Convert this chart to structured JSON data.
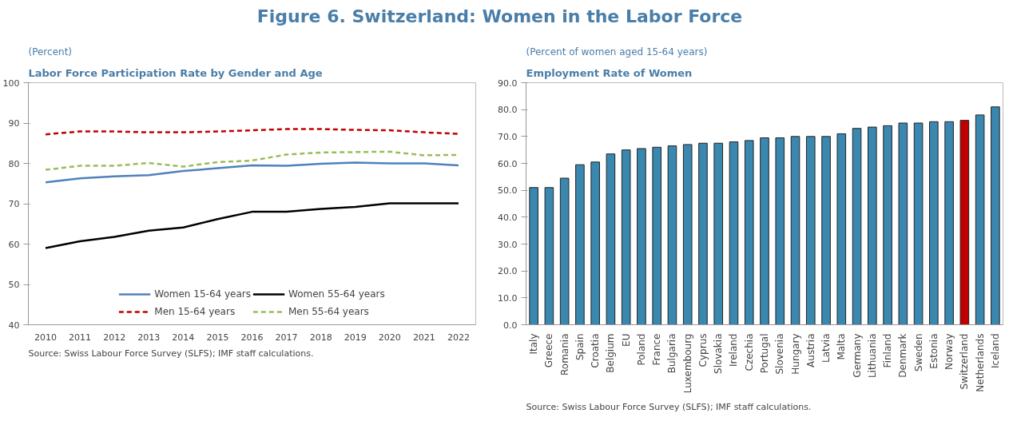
{
  "chart_data": [
    {
      "type": "other",
      "title": "Figure 6. Switzerland: Women in the Labor Force"
    },
    {
      "type": "line",
      "title": "Labor Force Participation Rate by Gender and Age",
      "subtitle": "(Percent)",
      "categories": [
        "2010",
        "2011",
        "2012",
        "2013",
        "2014",
        "2015",
        "2016",
        "2017",
        "2018",
        "2019",
        "2020",
        "2021",
        "2022"
      ],
      "series": [
        {
          "name": "Women 15-64 years",
          "color": "#4f81bd",
          "line_style": "solid",
          "values": [
            75.3,
            76.3,
            76.8,
            77.1,
            78.1,
            78.8,
            79.5,
            79.4,
            79.9,
            80.2,
            80.0,
            80.0,
            79.5
          ]
        },
        {
          "name": "Men 15-64 years",
          "color": "#c00000",
          "line_style": "dashed",
          "values": [
            87.2,
            87.9,
            87.9,
            87.7,
            87.7,
            87.9,
            88.2,
            88.5,
            88.5,
            88.3,
            88.2,
            87.7,
            87.3
          ]
        },
        {
          "name": "Women 55-64 years",
          "color": "#000000",
          "line_style": "solid",
          "values": [
            59.0,
            60.7,
            61.8,
            63.3,
            64.1,
            66.2,
            68.0,
            68.0,
            68.7,
            69.2,
            70.1,
            70.1,
            70.1
          ]
        },
        {
          "name": "Men 55-64 years",
          "color": "#9bbb59",
          "line_style": "dashed",
          "values": [
            78.4,
            79.4,
            79.4,
            80.1,
            79.2,
            80.3,
            80.7,
            82.2,
            82.7,
            82.8,
            82.9,
            82.0,
            82.1
          ]
        }
      ],
      "ylim": [
        40,
        100
      ],
      "yticks": [
        40,
        50,
        60,
        70,
        80,
        90,
        100
      ],
      "grid": false,
      "legend": "bottom",
      "marker": "none",
      "annotations": [
        "Source: Swiss Labour Force Survey (SLFS); IMF staff calculations."
      ]
    },
    {
      "type": "bar",
      "title": "Employment Rate of Women",
      "subtitle": "(Percent of women aged 15-64 years)",
      "categories": [
        "Italy",
        "Greece",
        "Romania",
        "Spain",
        "Croatia",
        "Belgium",
        "EU",
        "Poland",
        "France",
        "Bulgaria",
        "Luxembourg",
        "Cyprus",
        "Slovakia",
        "Ireland",
        "Czechia",
        "Portugal",
        "Slovenia",
        "Hungary",
        "Austria",
        "Latvia",
        "Malta",
        "Germany",
        "Lithuania",
        "Finland",
        "Denmark",
        "Sweden",
        "Estonia",
        "Norway",
        "Switzerland",
        "Netherlands",
        "Iceland"
      ],
      "values": [
        51,
        51,
        54.5,
        59.5,
        60.5,
        63.5,
        65,
        65.5,
        66,
        66.5,
        67,
        67.5,
        67.5,
        68,
        68.5,
        69.5,
        69.5,
        70,
        70,
        70,
        71,
        73,
        73.5,
        74,
        75,
        75,
        75.5,
        75.5,
        76,
        78,
        81
      ],
      "colors": [
        "#3a87b0",
        "#3a87b0",
        "#3a87b0",
        "#3a87b0",
        "#3a87b0",
        "#3a87b0",
        "#3a87b0",
        "#3a87b0",
        "#3a87b0",
        "#3a87b0",
        "#3a87b0",
        "#3a87b0",
        "#3a87b0",
        "#3a87b0",
        "#3a87b0",
        "#3a87b0",
        "#3a87b0",
        "#3a87b0",
        "#3a87b0",
        "#3a87b0",
        "#3a87b0",
        "#3a87b0",
        "#3a87b0",
        "#3a87b0",
        "#3a87b0",
        "#3a87b0",
        "#3a87b0",
        "#3a87b0",
        "#c00000",
        "#3a87b0",
        "#3a87b0"
      ],
      "ylim": [
        0,
        90
      ],
      "yticks": [
        {
          "value": 0,
          "label": "0.0"
        },
        {
          "value": 10,
          "label": "10.0"
        },
        {
          "value": 20,
          "label": "20.0"
        },
        {
          "value": 30,
          "label": "30.0"
        },
        {
          "value": 40,
          "label": "40.0"
        },
        {
          "value": 50,
          "label": "50.0"
        },
        {
          "value": 60,
          "label": "60.0"
        },
        {
          "value": 70,
          "label": "70.0"
        },
        {
          "value": 80,
          "label": "80.0"
        },
        {
          "value": 90,
          "label": "90.0"
        }
      ],
      "grid": false,
      "annotations": [
        "Source: Swiss Labour Force Survey (SLFS); IMF staff calculations."
      ]
    }
  ]
}
